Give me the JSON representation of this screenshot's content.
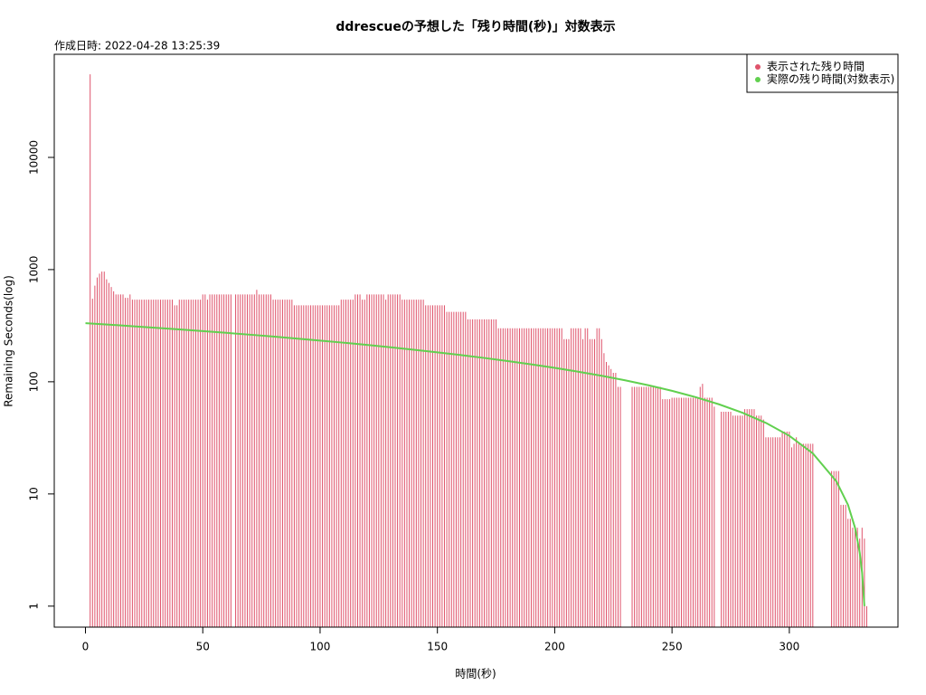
{
  "chart_data": {
    "type": "histogram-lines",
    "title": "ddrescueの予想した「残り時間(秒)」対数表示",
    "subtitle": "作成日時: 2022-04-28 13:25:39",
    "x_label": "時間(秒)",
    "y_label": "Remaining Seconds(log)",
    "xlim": [
      -13.3,
      346.3
    ],
    "ylim": [
      0.65,
      83000
    ],
    "log_y": true,
    "xticks": [
      0,
      50,
      100,
      150,
      200,
      250,
      300
    ],
    "yticks": [
      1,
      10,
      100,
      1000,
      10000
    ],
    "legend": "topright",
    "series": [
      {
        "name": "表示された残り時間",
        "color": "#DF536B",
        "kind": "h",
        "x": [
          2,
          3,
          4,
          5,
          6,
          7,
          8,
          9,
          10,
          11,
          12,
          13,
          14,
          15,
          16,
          17,
          18,
          19,
          20,
          21,
          22,
          23,
          24,
          25,
          26,
          27,
          28,
          29,
          30,
          31,
          32,
          33,
          34,
          35,
          36,
          37,
          38,
          39,
          40,
          41,
          42,
          43,
          44,
          45,
          46,
          47,
          48,
          49,
          50,
          51,
          52,
          53,
          54,
          55,
          56,
          57,
          58,
          59,
          60,
          61,
          62,
          63,
          64,
          65,
          66,
          67,
          68,
          69,
          70,
          71,
          72,
          73,
          74,
          75,
          76,
          77,
          78,
          79,
          80,
          81,
          82,
          83,
          84,
          85,
          86,
          87,
          88,
          89,
          90,
          91,
          92,
          93,
          94,
          95,
          96,
          97,
          98,
          99,
          100,
          101,
          102,
          103,
          104,
          105,
          106,
          107,
          108,
          109,
          110,
          111,
          112,
          113,
          114,
          115,
          116,
          117,
          118,
          119,
          120,
          121,
          122,
          123,
          124,
          125,
          126,
          127,
          128,
          129,
          130,
          131,
          132,
          133,
          134,
          135,
          136,
          137,
          138,
          139,
          140,
          141,
          142,
          143,
          144,
          145,
          146,
          147,
          148,
          149,
          150,
          151,
          152,
          153,
          154,
          155,
          156,
          157,
          158,
          159,
          160,
          161,
          162,
          163,
          164,
          165,
          166,
          167,
          168,
          169,
          170,
          171,
          172,
          173,
          174,
          175,
          176,
          177,
          178,
          179,
          180,
          181,
          182,
          183,
          184,
          185,
          186,
          187,
          188,
          189,
          190,
          191,
          192,
          193,
          194,
          195,
          196,
          197,
          198,
          199,
          200,
          201,
          202,
          203,
          204,
          205,
          206,
          207,
          208,
          209,
          210,
          211,
          212,
          213,
          214,
          215,
          216,
          217,
          218,
          219,
          220,
          221,
          222,
          223,
          224,
          225,
          226,
          227,
          228,
          229,
          230,
          231,
          232,
          233,
          234,
          235,
          236,
          237,
          238,
          239,
          240,
          241,
          242,
          243,
          244,
          245,
          246,
          247,
          248,
          249,
          250,
          251,
          252,
          253,
          254,
          255,
          256,
          257,
          258,
          259,
          260,
          261,
          262,
          263,
          264,
          265,
          266,
          267,
          268,
          269,
          270,
          271,
          272,
          273,
          274,
          275,
          276,
          277,
          278,
          279,
          280,
          281,
          282,
          283,
          284,
          285,
          286,
          287,
          288,
          289,
          290,
          291,
          292,
          293,
          294,
          295,
          296,
          297,
          298,
          299,
          300,
          301,
          302,
          303,
          304,
          305,
          306,
          307,
          308,
          309,
          310,
          311,
          312,
          313,
          314,
          315,
          316,
          317,
          318,
          319,
          320,
          321,
          322,
          323,
          324,
          325,
          326,
          327,
          328,
          329,
          330,
          331,
          332,
          333
        ],
        "values": [
          55000,
          550,
          720,
          850,
          920,
          960,
          960,
          820,
          760,
          700,
          640,
          600,
          600,
          600,
          600,
          560,
          560,
          600,
          540,
          540,
          540,
          540,
          540,
          540,
          540,
          540,
          540,
          540,
          540,
          540,
          540,
          540,
          540,
          540,
          540,
          540,
          480,
          480,
          540,
          540,
          540,
          540,
          540,
          540,
          540,
          540,
          540,
          540,
          600,
          600,
          540,
          600,
          600,
          600,
          600,
          600,
          600,
          600,
          600,
          600,
          600,
          null,
          600,
          600,
          600,
          600,
          600,
          600,
          600,
          600,
          600,
          660,
          600,
          600,
          600,
          600,
          600,
          600,
          540,
          540,
          540,
          540,
          540,
          540,
          540,
          540,
          540,
          480,
          480,
          480,
          480,
          480,
          480,
          480,
          480,
          480,
          480,
          480,
          480,
          480,
          480,
          480,
          480,
          480,
          480,
          480,
          480,
          540,
          540,
          540,
          540,
          540,
          540,
          600,
          600,
          600,
          540,
          540,
          600,
          600,
          600,
          600,
          600,
          600,
          600,
          600,
          540,
          600,
          600,
          600,
          600,
          600,
          600,
          540,
          540,
          540,
          540,
          540,
          540,
          540,
          540,
          540,
          540,
          480,
          480,
          480,
          480,
          480,
          480,
          480,
          480,
          480,
          420,
          420,
          420,
          420,
          420,
          420,
          420,
          420,
          420,
          360,
          360,
          360,
          360,
          360,
          360,
          360,
          360,
          360,
          360,
          360,
          360,
          360,
          300,
          300,
          300,
          300,
          300,
          300,
          300,
          300,
          300,
          300,
          300,
          300,
          300,
          300,
          300,
          300,
          300,
          300,
          300,
          300,
          300,
          300,
          300,
          300,
          300,
          300,
          300,
          300,
          240,
          240,
          240,
          300,
          300,
          300,
          300,
          300,
          240,
          300,
          300,
          240,
          240,
          240,
          300,
          300,
          240,
          180,
          150,
          140,
          130,
          120,
          120,
          90,
          90,
          null,
          null,
          null,
          null,
          90,
          90,
          90,
          90,
          90,
          90,
          90,
          90,
          90,
          90,
          90,
          90,
          90,
          70,
          70,
          70,
          70,
          72,
          72,
          72,
          72,
          72,
          72,
          72,
          72,
          72,
          72,
          72,
          72,
          90,
          96,
          72,
          72,
          72,
          72,
          60,
          null,
          null,
          54,
          54,
          54,
          54,
          54,
          50,
          50,
          50,
          50,
          50,
          57,
          57,
          57,
          57,
          57,
          50,
          50,
          50,
          46,
          32,
          32,
          32,
          32,
          32,
          32,
          32,
          36,
          36,
          36,
          36,
          26,
          28,
          32,
          28,
          28,
          28,
          28,
          28,
          28,
          28,
          null,
          null,
          null,
          null,
          null,
          null,
          null,
          16,
          16,
          16,
          16,
          8,
          8,
          8,
          6,
          6,
          5,
          5,
          5,
          4,
          5,
          4,
          1
        ]
      },
      {
        "name": "実際の残り時間(対数表示)",
        "color": "#61D04F",
        "kind": "l",
        "x": [
          0,
          10,
          20,
          30,
          40,
          50,
          60,
          70,
          80,
          90,
          100,
          110,
          120,
          130,
          140,
          150,
          160,
          170,
          180,
          190,
          200,
          210,
          220,
          230,
          240,
          250,
          260,
          270,
          280,
          290,
          300,
          310,
          320,
          325,
          328,
          330,
          331,
          332
        ],
        "values": [
          333,
          323,
          313,
          303,
          293,
          283,
          273,
          263,
          253,
          243,
          233,
          223,
          213,
          203,
          193,
          183,
          173,
          163,
          153,
          143,
          133,
          123,
          113,
          103,
          93,
          83,
          73,
          63,
          53,
          43,
          33,
          23,
          13,
          8,
          5,
          3,
          2,
          1
        ]
      }
    ]
  }
}
